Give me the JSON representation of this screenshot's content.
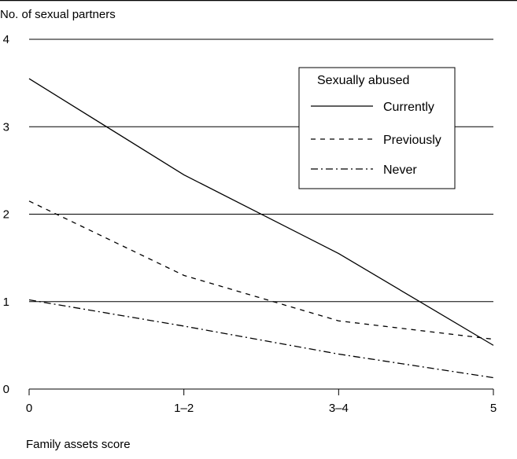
{
  "chart_data": {
    "type": "line",
    "title": "",
    "ylabel": "No. of sexual partners",
    "xlabel": "Family assets score",
    "categories": [
      "0",
      "1–2",
      "3–4",
      "5"
    ],
    "yticks": [
      "0",
      "1",
      "2",
      "3",
      "4"
    ],
    "ylim": [
      0,
      4
    ],
    "grid": true,
    "legend": {
      "title": "Sexually abused",
      "placement": "top-right",
      "entries": [
        "Currently",
        "Previously",
        "Never"
      ]
    },
    "series": [
      {
        "name": "Currently",
        "style": "solid",
        "values": [
          3.55,
          2.45,
          1.55,
          0.5
        ]
      },
      {
        "name": "Previously",
        "style": "dashed",
        "values": [
          2.15,
          1.3,
          0.78,
          0.57
        ]
      },
      {
        "name": "Never",
        "style": "dash-dot",
        "values": [
          1.02,
          0.72,
          0.4,
          0.13
        ]
      }
    ],
    "colors": {
      "line": "#000000",
      "background": "#ffffff"
    }
  }
}
